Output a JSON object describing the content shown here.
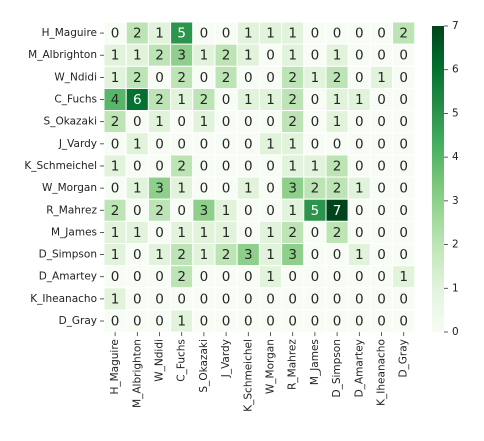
{
  "chart_data": {
    "type": "heatmap",
    "title": "",
    "xlabel": "",
    "ylabel": "",
    "rows": [
      "H_Maguire",
      "M_Albrighton",
      "W_Ndidi",
      "C_Fuchs",
      "S_Okazaki",
      "J_Vardy",
      "K_Schmeichel",
      "W_Morgan",
      "R_Mahrez",
      "M_James",
      "D_Simpson",
      "D_Amartey",
      "K_Iheanacho",
      "D_Gray"
    ],
    "columns": [
      "H_Maguire",
      "M_Albrighton",
      "W_Ndidi",
      "C_Fuchs",
      "S_Okazaki",
      "J_Vardy",
      "K_Schmeichel",
      "W_Morgan",
      "R_Mahrez",
      "M_James",
      "D_Simpson",
      "D_Amartey",
      "K_Iheanacho",
      "D_Gray"
    ],
    "values": [
      [
        0,
        2,
        1,
        5,
        0,
        0,
        1,
        1,
        1,
        0,
        0,
        0,
        0,
        2
      ],
      [
        1,
        1,
        2,
        3,
        1,
        2,
        1,
        0,
        1,
        0,
        1,
        0,
        0,
        0
      ],
      [
        1,
        2,
        0,
        2,
        0,
        2,
        0,
        0,
        2,
        1,
        2,
        0,
        1,
        0
      ],
      [
        4,
        6,
        2,
        1,
        2,
        0,
        1,
        1,
        2,
        0,
        1,
        1,
        0,
        0
      ],
      [
        2,
        0,
        1,
        0,
        1,
        0,
        0,
        0,
        2,
        0,
        1,
        0,
        0,
        0
      ],
      [
        0,
        1,
        0,
        0,
        0,
        0,
        0,
        1,
        1,
        0,
        0,
        0,
        0,
        0
      ],
      [
        1,
        0,
        0,
        2,
        0,
        0,
        0,
        0,
        1,
        1,
        2,
        0,
        0,
        0
      ],
      [
        0,
        1,
        3,
        1,
        0,
        0,
        1,
        0,
        3,
        2,
        2,
        1,
        0,
        0
      ],
      [
        2,
        0,
        2,
        0,
        3,
        1,
        0,
        0,
        1,
        5,
        7,
        0,
        0,
        0
      ],
      [
        1,
        1,
        0,
        1,
        1,
        1,
        0,
        1,
        2,
        0,
        2,
        0,
        0,
        0
      ],
      [
        1,
        0,
        1,
        2,
        1,
        2,
        3,
        1,
        3,
        0,
        0,
        1,
        0,
        0
      ],
      [
        0,
        0,
        0,
        2,
        0,
        0,
        0,
        1,
        0,
        0,
        0,
        0,
        0,
        1
      ],
      [
        1,
        0,
        0,
        0,
        0,
        0,
        0,
        0,
        0,
        0,
        0,
        0,
        0,
        0
      ],
      [
        0,
        0,
        0,
        1,
        0,
        0,
        0,
        0,
        0,
        0,
        0,
        0,
        0,
        0
      ]
    ],
    "value_range": [
      0,
      7
    ],
    "colorbar": {
      "ticks": [
        0,
        1,
        2,
        3,
        4,
        5,
        6,
        7
      ]
    },
    "colormap": [
      "#f7fcf5",
      "#e5f5e0",
      "#c7e9c0",
      "#a1d99b",
      "#74c476",
      "#41ab5d",
      "#238b45",
      "#006d2c",
      "#00441b"
    ],
    "annotations": true,
    "grid": "white cell borders"
  }
}
